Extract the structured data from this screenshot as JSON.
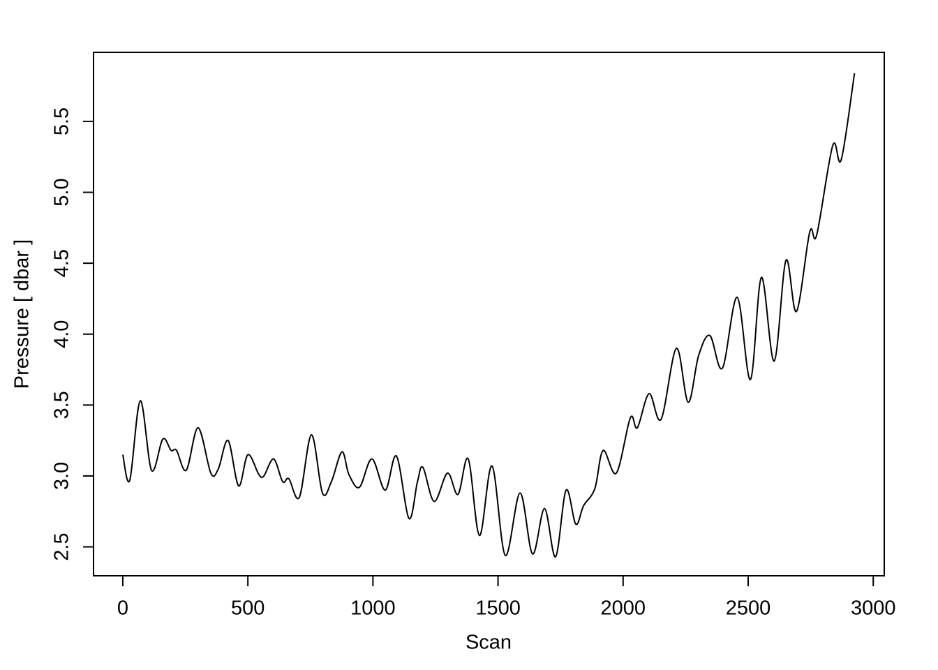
{
  "chart_data": {
    "type": "line",
    "xlabel": "Scan",
    "ylabel": "Pressure [ dbar ]",
    "xlim": [
      -117,
      3044
    ],
    "ylim": [
      2.296,
      5.987
    ],
    "xticks": [
      0,
      500,
      1000,
      1500,
      2000,
      2500,
      3000
    ],
    "yticks": [
      2.5,
      {
        "value": 3,
        "label": "3.0"
      },
      3.5,
      {
        "value": 4,
        "label": "4.0"
      },
      4.5,
      {
        "value": 5,
        "label": "5.0"
      },
      5.5
    ],
    "color": "#000000",
    "x": [
      0,
      28,
      70,
      115,
      160,
      193,
      215,
      254,
      301,
      352,
      382,
      421,
      463,
      500,
      544,
      564,
      603,
      639,
      664,
      706,
      754,
      798,
      834,
      876,
      904,
      946,
      996,
      1049,
      1094,
      1144,
      1178,
      1200,
      1245,
      1298,
      1340,
      1381,
      1426,
      1476,
      1529,
      1588,
      1638,
      1686,
      1730,
      1772,
      1811,
      1842,
      1887,
      1920,
      1973,
      2029,
      2057,
      2104,
      2152,
      2213,
      2260,
      2302,
      2347,
      2397,
      2456,
      2509,
      2553,
      2604,
      2651,
      2693,
      2746,
      2774,
      2838,
      2872,
      2925
    ],
    "values": [
      3.15,
      2.97,
      3.53,
      3.04,
      3.26,
      3.18,
      3.18,
      3.04,
      3.34,
      3.02,
      3.05,
      3.25,
      2.93,
      3.15,
      3.01,
      3.0,
      3.12,
      2.96,
      2.98,
      2.85,
      3.29,
      2.88,
      2.96,
      3.17,
      3.01,
      2.92,
      3.12,
      2.9,
      3.14,
      2.7,
      2.96,
      3.06,
      2.82,
      3.02,
      2.87,
      3.12,
      2.58,
      3.07,
      2.44,
      2.88,
      2.45,
      2.77,
      2.43,
      2.9,
      2.66,
      2.79,
      2.91,
      3.18,
      3.02,
      3.41,
      3.34,
      3.58,
      3.4,
      3.9,
      3.52,
      3.85,
      3.99,
      3.76,
      4.26,
      3.68,
      4.4,
      3.81,
      4.52,
      4.16,
      4.72,
      4.7,
      5.33,
      5.23,
      5.84
    ]
  }
}
